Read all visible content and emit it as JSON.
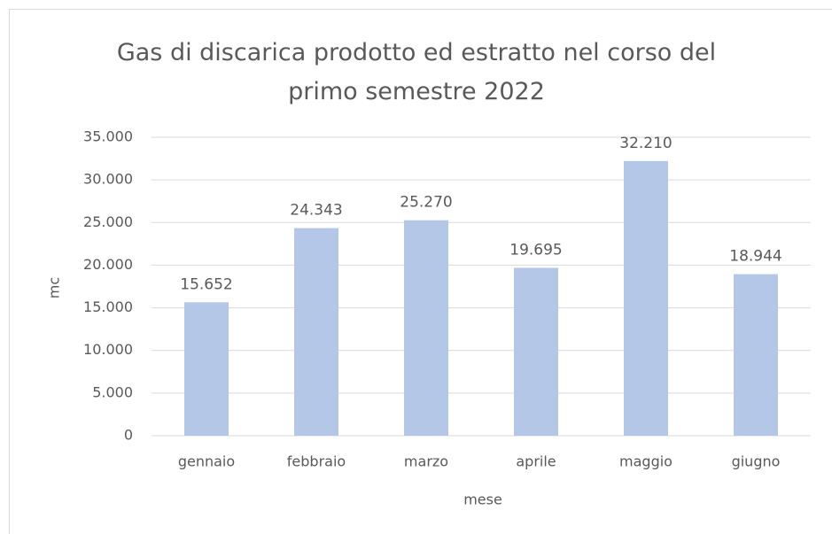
{
  "chart_data": {
    "type": "bar",
    "title": "Gas di discarica prodotto ed estratto nel corso del primo semestre 2022",
    "x_label": "mese",
    "y_label": "mc",
    "categories": [
      "gennaio",
      "febbraio",
      "marzo",
      "aprile",
      "maggio",
      "giugno"
    ],
    "values": [
      15652,
      24343,
      25270,
      19695,
      32210,
      18944
    ],
    "value_labels": [
      "15.652",
      "24.343",
      "25.270",
      "19.695",
      "32.210",
      "18.944"
    ],
    "color": "#b4c7e7",
    "ylim": [
      0,
      35000
    ],
    "yticks": [
      0,
      {
        "value": 5000,
        "label": "5.000"
      },
      {
        "value": 10000,
        "label": "10.000"
      },
      {
        "value": 15000,
        "label": "15.000"
      },
      {
        "value": 20000,
        "label": "20.000"
      },
      {
        "value": 25000,
        "label": "25.000"
      },
      {
        "value": 30000,
        "label": "30.000"
      },
      {
        "value": 35000,
        "label": "35.000"
      }
    ],
    "grid": true
  }
}
